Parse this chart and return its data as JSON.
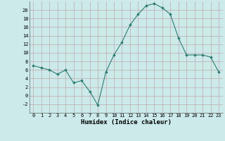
{
  "x": [
    0,
    1,
    2,
    3,
    4,
    5,
    6,
    7,
    8,
    9,
    10,
    11,
    12,
    13,
    14,
    15,
    16,
    17,
    18,
    19,
    20,
    21,
    22,
    23
  ],
  "y": [
    7,
    6.5,
    6,
    5,
    6,
    3,
    3.5,
    1,
    -2.2,
    5.5,
    9.5,
    12.5,
    16.5,
    19,
    21,
    21.5,
    20.5,
    19,
    13.5,
    9.5,
    9.5,
    9.5,
    9,
    5.5
  ],
  "line_color": "#2d7d6e",
  "marker": "D",
  "marker_size": 1.8,
  "bg_color": "#cceaea",
  "grid_color": "#c0a8a8",
  "xlabel": "Humidex (Indice chaleur)",
  "ylim": [
    -4,
    22
  ],
  "xlim": [
    -0.5,
    23.5
  ],
  "yticks": [
    -2,
    0,
    2,
    4,
    6,
    8,
    10,
    12,
    14,
    16,
    18,
    20
  ],
  "xticks": [
    0,
    1,
    2,
    3,
    4,
    5,
    6,
    7,
    8,
    9,
    10,
    11,
    12,
    13,
    14,
    15,
    16,
    17,
    18,
    19,
    20,
    21,
    22,
    23
  ],
  "tick_fontsize": 5.0,
  "xlabel_fontsize": 6.5
}
